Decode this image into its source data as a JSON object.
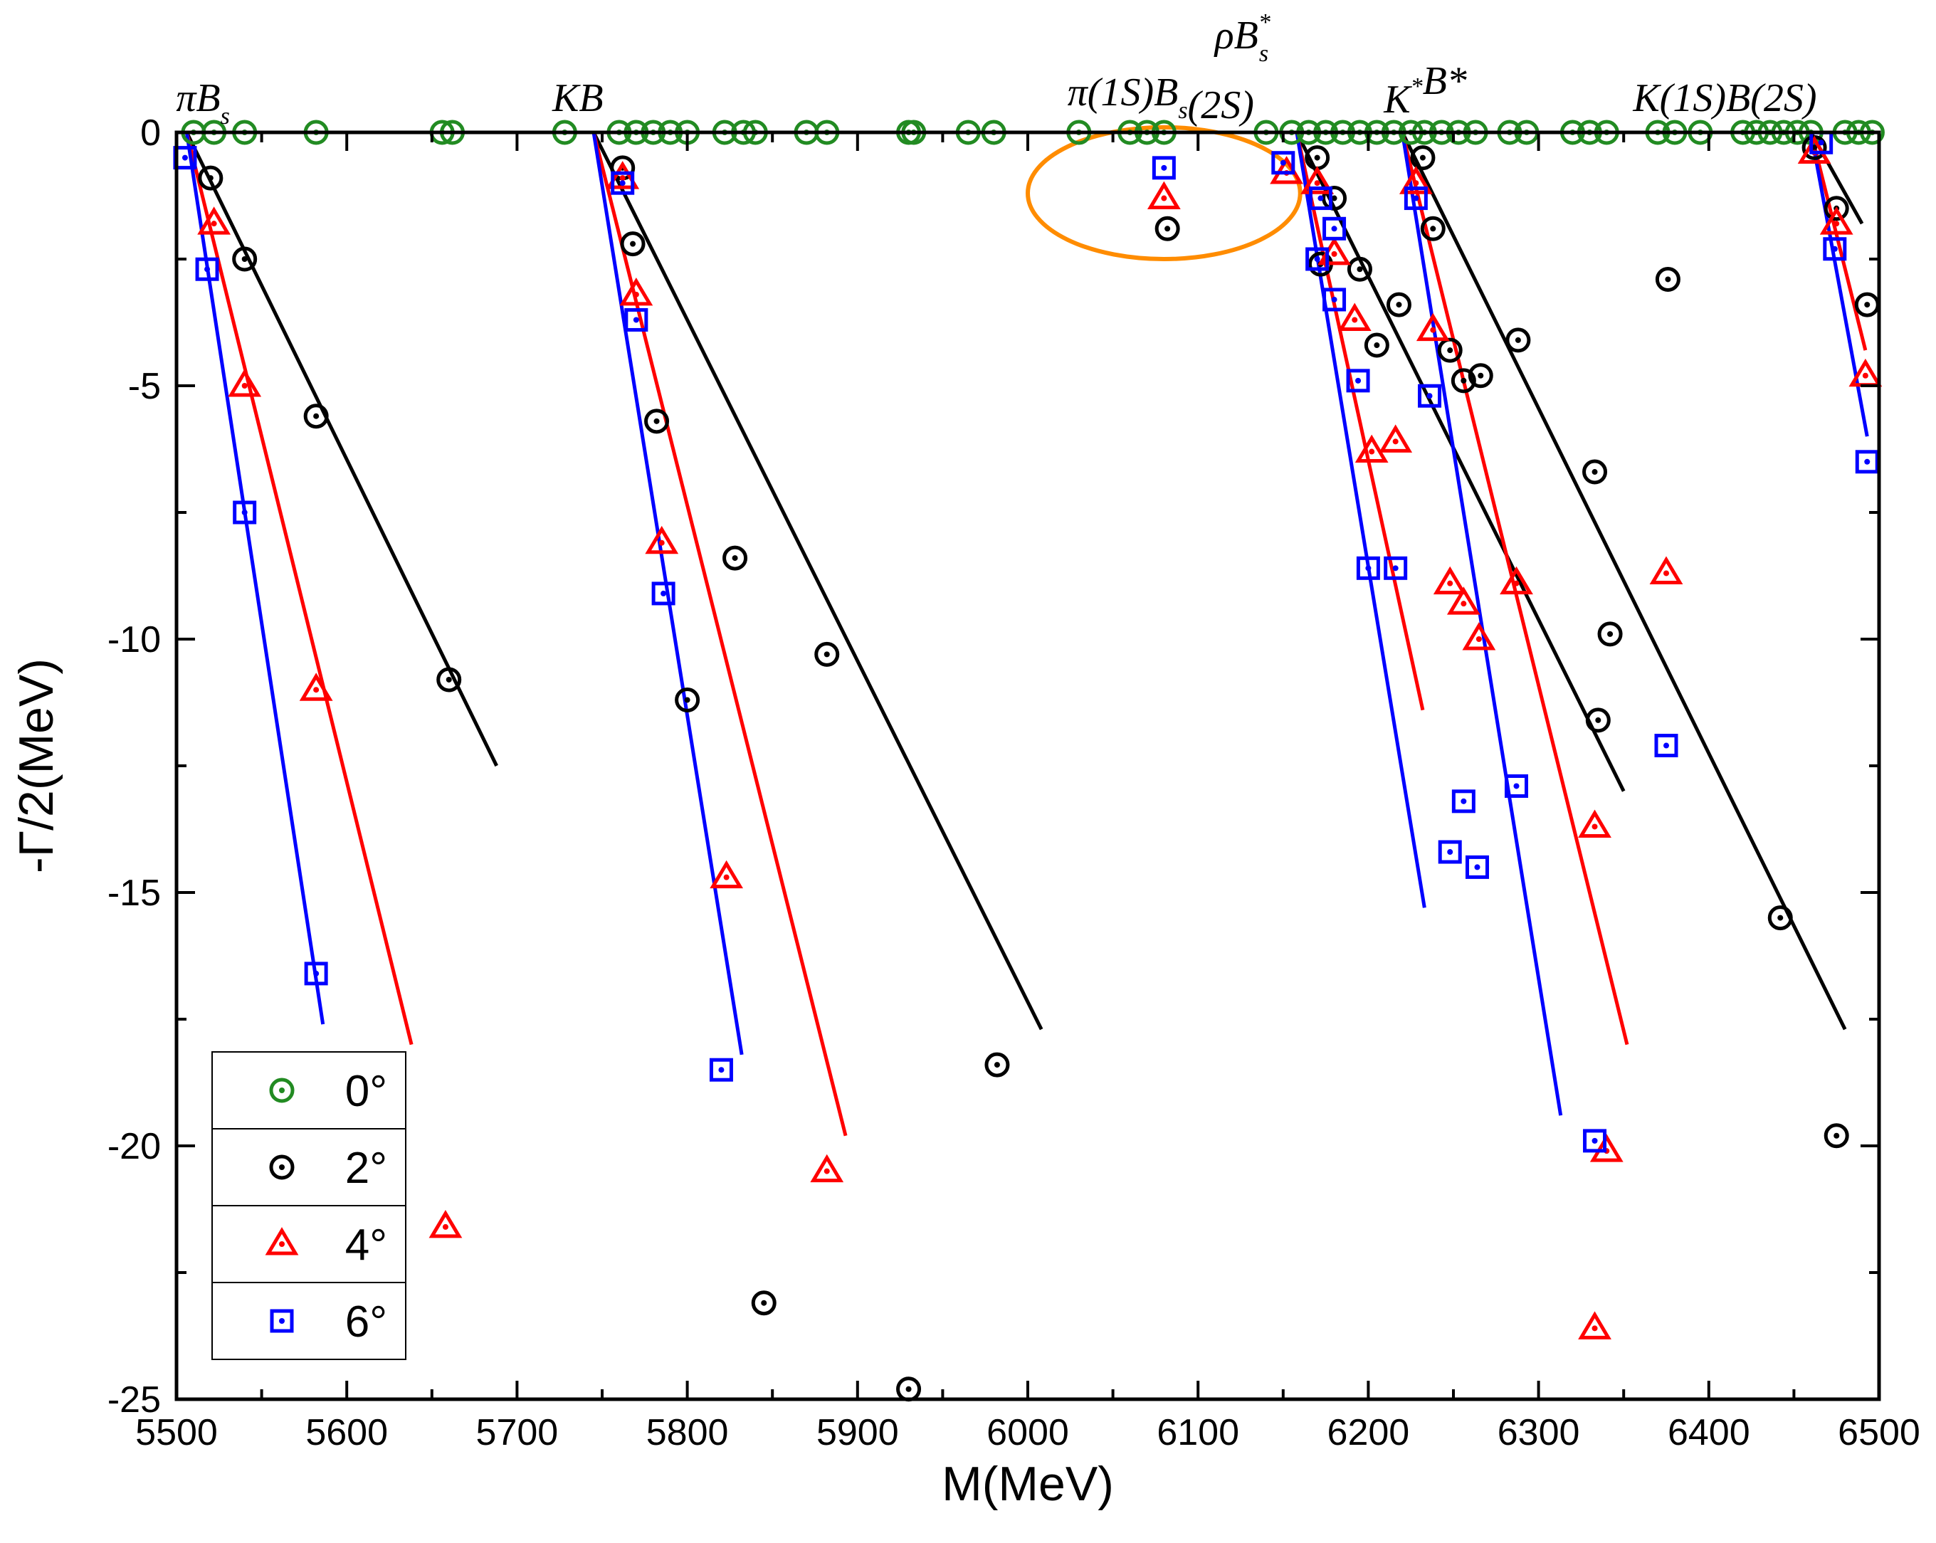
{
  "chart_data": {
    "type": "scatter",
    "title": "",
    "xlabel": "M(MeV)",
    "ylabel": "-Γ/2(MeV)",
    "xlim": [
      5500,
      6500
    ],
    "ylim": [
      -25,
      0
    ],
    "xticks": [
      "5500",
      "5600",
      "5700",
      "5800",
      "5900",
      "6000",
      "6100",
      "6200",
      "6300",
      "6400",
      "6500"
    ],
    "yticks": [
      "0",
      "-5",
      "-10",
      "-15",
      "-20",
      "-25"
    ],
    "thresholds": [
      {
        "main": "πB",
        "sub": "s",
        "sup": "",
        "tail": "",
        "x": 5506
      },
      {
        "main": "KB",
        "sub": "",
        "sup": "",
        "tail": "",
        "x": 5745
      },
      {
        "main": "ρB",
        "sub": "s",
        "sup": "*",
        "tail": "",
        "x": 6160
      },
      {
        "main": "π(1S)B",
        "sub": "s",
        "sup": "",
        "tail": "(2S)",
        "x": 6155
      },
      {
        "main": "K",
        "sub": "",
        "sup": "*",
        "tail": "B*",
        "x": 6220
      },
      {
        "main": "K(1S)B(2S)",
        "sub": "",
        "sup": "",
        "tail": "",
        "x": 6460
      }
    ],
    "legend": {
      "placement": "bottom-left",
      "entries": [
        {
          "label": "0°",
          "color": "#228B22",
          "marker": "circle"
        },
        {
          "label": "2°",
          "color": "#000000",
          "marker": "circle"
        },
        {
          "label": "4°",
          "color": "#FF0000",
          "marker": "triangle"
        },
        {
          "label": "6°",
          "color": "#0000FF",
          "marker": "square"
        }
      ]
    },
    "annotation": {
      "type": "ellipse",
      "color": "#FF8C00",
      "center": [
        6080,
        -1.2
      ],
      "rx": 80,
      "ry": 1.3
    },
    "series": [
      {
        "name": "0°",
        "color": "#228B22",
        "marker": "circle",
        "points": [
          [
            5510,
            0
          ],
          [
            5522,
            0
          ],
          [
            5540,
            0
          ],
          [
            5582,
            0
          ],
          [
            5656,
            0
          ],
          [
            5662,
            0
          ],
          [
            5728,
            0
          ],
          [
            5760,
            0
          ],
          [
            5770,
            0
          ],
          [
            5780,
            0
          ],
          [
            5790,
            0
          ],
          [
            5800,
            0
          ],
          [
            5822,
            0
          ],
          [
            5833,
            0
          ],
          [
            5840,
            0
          ],
          [
            5870,
            0
          ],
          [
            5882,
            0
          ],
          [
            5930,
            0
          ],
          [
            5933,
            0
          ],
          [
            5965,
            0
          ],
          [
            5980,
            0
          ],
          [
            6030,
            0
          ],
          [
            6060,
            0
          ],
          [
            6070,
            0
          ],
          [
            6080,
            0
          ],
          [
            6140,
            0
          ],
          [
            6155,
            0
          ],
          [
            6165,
            0
          ],
          [
            6175,
            0
          ],
          [
            6185,
            0
          ],
          [
            6195,
            0
          ],
          [
            6205,
            0
          ],
          [
            6215,
            0
          ],
          [
            6225,
            0
          ],
          [
            6233,
            0
          ],
          [
            6243,
            0
          ],
          [
            6253,
            0
          ],
          [
            6263,
            0
          ],
          [
            6283,
            0
          ],
          [
            6293,
            0
          ],
          [
            6320,
            0
          ],
          [
            6330,
            0
          ],
          [
            6340,
            0
          ],
          [
            6370,
            0
          ],
          [
            6380,
            0
          ],
          [
            6395,
            0
          ],
          [
            6420,
            0
          ],
          [
            6428,
            0
          ],
          [
            6436,
            0
          ],
          [
            6444,
            0
          ],
          [
            6452,
            0
          ],
          [
            6460,
            0
          ],
          [
            6480,
            0
          ],
          [
            6488,
            0
          ],
          [
            6496,
            0
          ]
        ]
      },
      {
        "name": "2°",
        "color": "#000000",
        "marker": "circle",
        "lines": [
          [
            [
              5506,
              0
            ],
            [
              5688,
              -12.5
            ]
          ],
          [
            [
              5745,
              0
            ],
            [
              6008,
              -17.7
            ]
          ],
          [
            [
              6158,
              0
            ],
            [
              6350,
              -13.0
            ]
          ],
          [
            [
              6220,
              0
            ],
            [
              6480,
              -17.7
            ]
          ],
          [
            [
              6460,
              0
            ],
            [
              6490,
              -1.8
            ]
          ]
        ],
        "points": [
          [
            5520,
            -0.9
          ],
          [
            5540,
            -2.5
          ],
          [
            5582,
            -5.6
          ],
          [
            5660,
            -10.8
          ],
          [
            5762,
            -0.7
          ],
          [
            5768,
            -2.2
          ],
          [
            5782,
            -5.7
          ],
          [
            5800,
            -11.2
          ],
          [
            5828,
            -8.4
          ],
          [
            5845,
            -23.1
          ],
          [
            5882,
            -10.3
          ],
          [
            5930,
            -24.8
          ],
          [
            5982,
            -18.4
          ],
          [
            6082,
            -1.9
          ],
          [
            6170,
            -0.5
          ],
          [
            6172,
            -2.6
          ],
          [
            6180,
            -1.3
          ],
          [
            6195,
            -2.7
          ],
          [
            6205,
            -4.2
          ],
          [
            6218,
            -3.4
          ],
          [
            6232,
            -0.5
          ],
          [
            6238,
            -1.9
          ],
          [
            6248,
            -4.3
          ],
          [
            6256,
            -4.9
          ],
          [
            6266,
            -4.8
          ],
          [
            6288,
            -4.1
          ],
          [
            6333,
            -6.7
          ],
          [
            6335,
            -11.6
          ],
          [
            6342,
            -9.9
          ],
          [
            6376,
            -2.9
          ],
          [
            6442,
            -15.5
          ],
          [
            6462,
            -0.3
          ],
          [
            6475,
            -1.5
          ],
          [
            6475,
            -19.8
          ],
          [
            6493,
            -3.4
          ]
        ]
      },
      {
        "name": "4°",
        "color": "#FF0000",
        "marker": "triangle",
        "lines": [
          [
            [
              5506,
              0
            ],
            [
              5638,
              -18.0
            ]
          ],
          [
            [
              5745,
              0
            ],
            [
              5893,
              -19.8
            ]
          ],
          [
            [
              6158,
              0
            ],
            [
              6232,
              -11.4
            ]
          ],
          [
            [
              6220,
              0
            ],
            [
              6352,
              -18.0
            ]
          ],
          [
            [
              6460,
              0
            ],
            [
              6492,
              -4.3
            ]
          ]
        ],
        "points": [
          [
            5522,
            -1.8
          ],
          [
            5540,
            -5.0
          ],
          [
            5582,
            -11.0
          ],
          [
            5658,
            -21.6
          ],
          [
            5762,
            -0.9
          ],
          [
            5770,
            -3.2
          ],
          [
            5785,
            -8.1
          ],
          [
            5823,
            -14.7
          ],
          [
            5882,
            -20.5
          ],
          [
            6080,
            -1.3
          ],
          [
            6152,
            -0.8
          ],
          [
            6170,
            -1.0
          ],
          [
            6180,
            -2.4
          ],
          [
            6192,
            -3.7
          ],
          [
            6202,
            -6.3
          ],
          [
            6216,
            -6.1
          ],
          [
            6228,
            -1.0
          ],
          [
            6238,
            -3.9
          ],
          [
            6248,
            -8.9
          ],
          [
            6256,
            -9.3
          ],
          [
            6265,
            -10.0
          ],
          [
            6287,
            -8.9
          ],
          [
            6333,
            -13.7
          ],
          [
            6333,
            -23.6
          ],
          [
            6340,
            -20.1
          ],
          [
            6375,
            -8.7
          ],
          [
            6462,
            -0.4
          ],
          [
            6475,
            -1.8
          ],
          [
            6492,
            -4.8
          ]
        ]
      },
      {
        "name": "6°",
        "color": "#0000FF",
        "marker": "square",
        "lines": [
          [
            [
              5506,
              0
            ],
            [
              5586,
              -17.6
            ]
          ],
          [
            [
              5745,
              0
            ],
            [
              5832,
              -18.2
            ]
          ],
          [
            [
              6158,
              0
            ],
            [
              6233,
              -15.3
            ]
          ],
          [
            [
              6220,
              0
            ],
            [
              6313,
              -19.4
            ]
          ],
          [
            [
              6460,
              0
            ],
            [
              6493,
              -6.0
            ]
          ]
        ],
        "points": [
          [
            5505,
            -0.5
          ],
          [
            5518,
            -2.7
          ],
          [
            5540,
            -7.5
          ],
          [
            5582,
            -16.6
          ],
          [
            5762,
            -1.0
          ],
          [
            5770,
            -3.7
          ],
          [
            5786,
            -9.1
          ],
          [
            5820,
            -18.5
          ],
          [
            6080,
            -0.7
          ],
          [
            6150,
            -0.6
          ],
          [
            6170,
            -2.5
          ],
          [
            6172,
            -1.3
          ],
          [
            6180,
            -1.9
          ],
          [
            6180,
            -3.3
          ],
          [
            6194,
            -4.9
          ],
          [
            6200,
            -8.6
          ],
          [
            6216,
            -8.6
          ],
          [
            6228,
            -1.3
          ],
          [
            6236,
            -5.2
          ],
          [
            6248,
            -14.2
          ],
          [
            6256,
            -13.2
          ],
          [
            6264,
            -14.5
          ],
          [
            6287,
            -12.9
          ],
          [
            6333,
            -19.9
          ],
          [
            6375,
            -12.1
          ],
          [
            6466,
            -0.2
          ],
          [
            6474,
            -2.3
          ],
          [
            6493,
            -6.5
          ]
        ]
      }
    ]
  }
}
